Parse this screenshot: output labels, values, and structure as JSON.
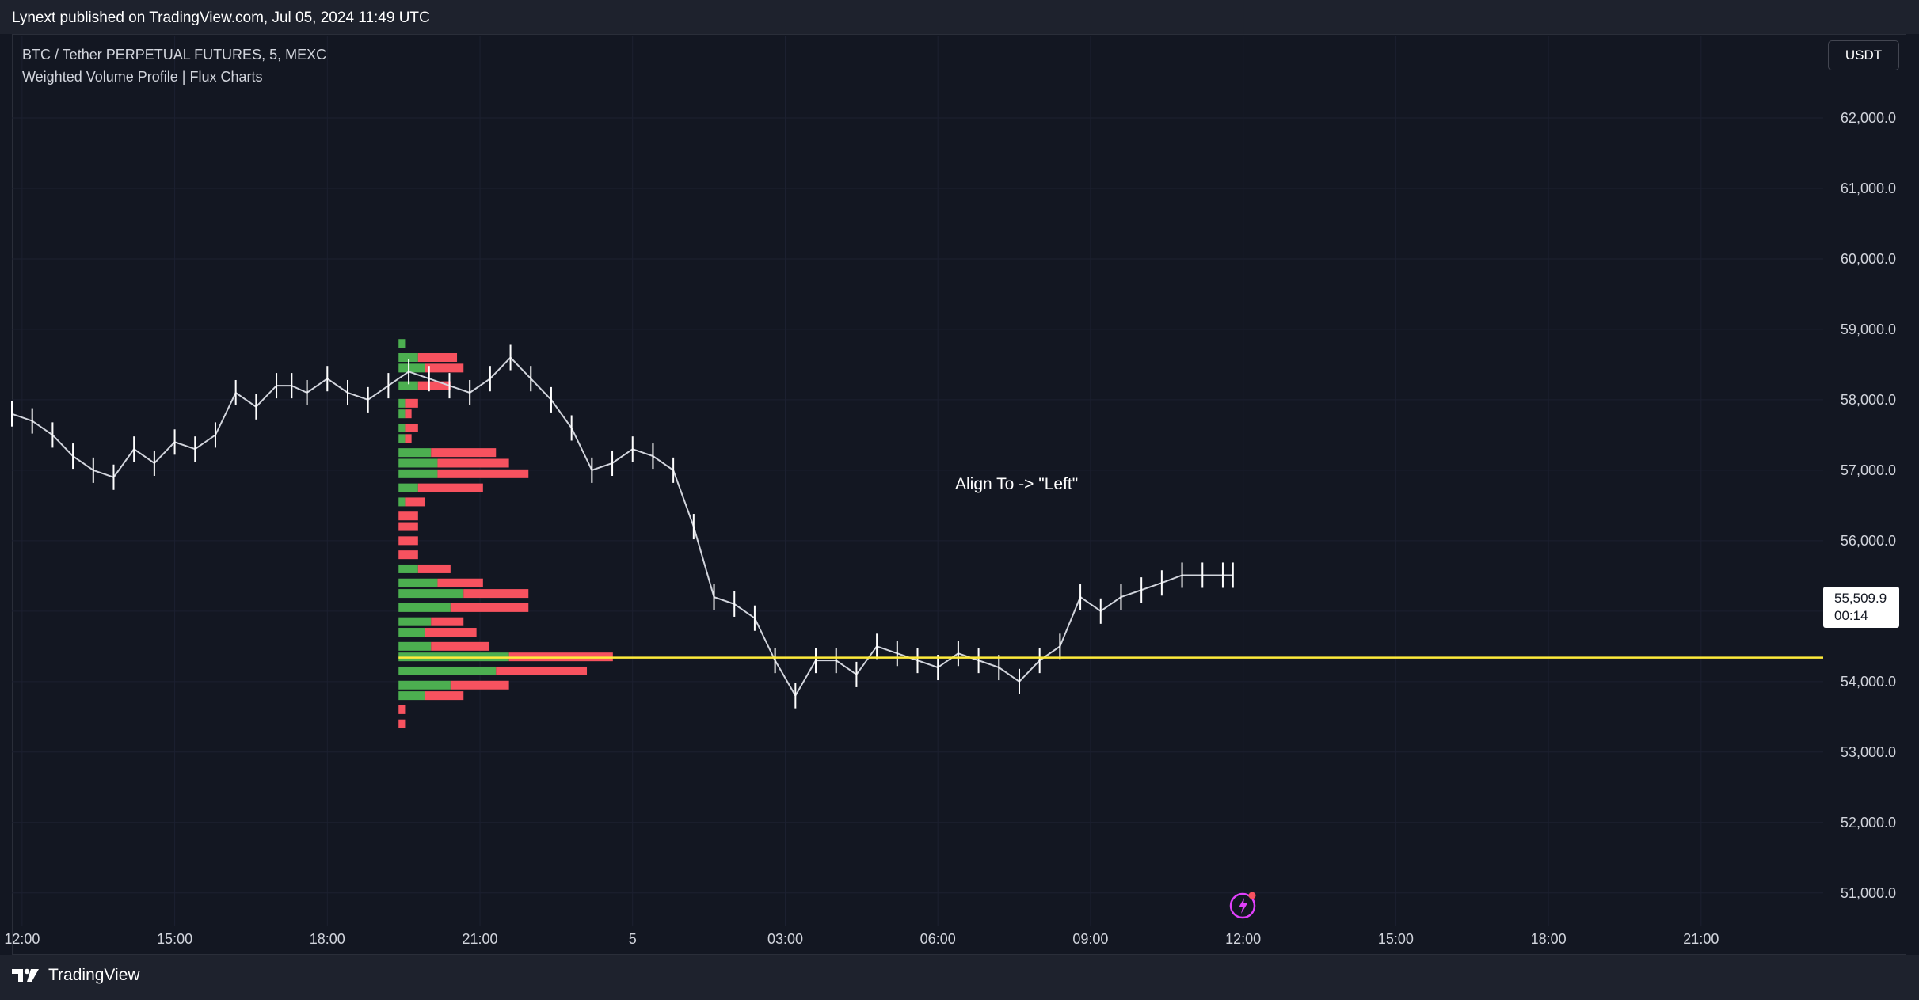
{
  "header": {
    "published_text": "Lynext published on TradingView.com, Jul 05, 2024 11:49 UTC"
  },
  "legend": {
    "symbol": "BTC / Tether PERPETUAL FUTURES, 5, MEXC",
    "indicator": "Weighted Volume Profile | Flux Charts"
  },
  "currency_button": {
    "label": "USDT"
  },
  "price_tag": {
    "price": "55,509.9",
    "countdown": "00:14"
  },
  "annotation": {
    "text": "Align To -> \"Left\""
  },
  "footer": {
    "brand": "TradingView"
  },
  "icons": {
    "lightning": "lightning-icon",
    "logo": "tradingview-logo-icon"
  },
  "colors": {
    "background": "#131722",
    "grid": "#1c2030",
    "price_line": "#d1d4dc",
    "buy_volume": "#4caf50",
    "sell_volume": "#f7525f",
    "poc": "#ffeb3b",
    "lightning": "#e040fb"
  },
  "chart_data": {
    "type": "line",
    "title": "",
    "xlabel": "",
    "ylabel": "",
    "x_ticks": [
      "12:00",
      "15:00",
      "18:00",
      "21:00",
      "5",
      "03:00",
      "06:00",
      "09:00",
      "12:00",
      "15:00",
      "18:00",
      "21:00"
    ],
    "x_tick_hours": [
      12,
      15,
      18,
      21,
      24,
      27,
      30,
      33,
      36,
      39,
      42,
      45
    ],
    "xlim_hours": [
      11.8,
      47.4
    ],
    "y_ticks": [
      "51,000.0",
      "52,000.0",
      "53,000.0",
      "54,000.0",
      "55,000.0",
      "56,000.0",
      "57,000.0",
      "58,000.0",
      "59,000.0",
      "60,000.0",
      "61,000.0",
      "62,000.0"
    ],
    "y_tick_values": [
      51000,
      52000,
      53000,
      54000,
      55000,
      56000,
      57000,
      58000,
      59000,
      60000,
      61000,
      62000
    ],
    "ylim": [
      50750,
      63000
    ],
    "grid": true,
    "series": [
      {
        "x_hours": [
          11.8,
          12.2,
          12.6,
          13.0,
          13.4,
          13.8,
          14.2,
          14.6,
          15.0,
          15.4,
          15.8,
          16.2,
          16.6,
          17.0,
          17.3,
          17.6,
          18.0,
          18.4,
          18.8,
          19.2,
          19.6,
          20.0,
          20.4,
          20.8,
          21.2,
          21.6,
          22.0,
          22.4,
          22.8,
          23.2,
          23.6,
          24.0,
          24.4,
          24.8,
          25.2,
          25.6,
          26.0,
          26.4,
          26.8,
          27.2,
          27.6,
          28.0,
          28.4,
          28.8,
          29.2,
          29.6,
          30.0,
          30.4,
          30.8,
          31.2,
          31.6,
          32.0,
          32.4,
          32.8,
          33.2,
          33.6,
          34.0,
          34.4,
          34.8,
          35.2,
          35.6,
          35.8
        ],
        "close": [
          57800,
          57700,
          57500,
          57200,
          57000,
          56900,
          57300,
          57100,
          57400,
          57300,
          57500,
          58100,
          57900,
          58200,
          58200,
          58100,
          58300,
          58100,
          58000,
          58200,
          58400,
          58300,
          58200,
          58100,
          58300,
          58600,
          58300,
          58000,
          57600,
          57000,
          57100,
          57300,
          57200,
          57000,
          56200,
          55200,
          55100,
          54900,
          54300,
          53800,
          54300,
          54300,
          54100,
          54500,
          54400,
          54300,
          54200,
          54400,
          54300,
          54200,
          54000,
          54300,
          54500,
          55200,
          55000,
          55200,
          55300,
          55400,
          55509.9,
          55509.9,
          55509.9,
          55509.9
        ]
      }
    ],
    "volume_profile": {
      "align": "Left",
      "levels": [
        {
          "price": 58800,
          "buy": 1,
          "sell": 0
        },
        {
          "price": 58600,
          "buy": 3,
          "sell": 6
        },
        {
          "price": 58450,
          "buy": 4,
          "sell": 6
        },
        {
          "price": 58200,
          "buy": 3,
          "sell": 5
        },
        {
          "price": 57950,
          "buy": 1,
          "sell": 2
        },
        {
          "price": 57800,
          "buy": 1,
          "sell": 1
        },
        {
          "price": 57600,
          "buy": 1,
          "sell": 2
        },
        {
          "price": 57450,
          "buy": 1,
          "sell": 1
        },
        {
          "price": 57250,
          "buy": 5,
          "sell": 10
        },
        {
          "price": 57100,
          "buy": 6,
          "sell": 11
        },
        {
          "price": 56950,
          "buy": 6,
          "sell": 14
        },
        {
          "price": 56750,
          "buy": 3,
          "sell": 10
        },
        {
          "price": 56550,
          "buy": 1,
          "sell": 3
        },
        {
          "price": 56350,
          "buy": 0,
          "sell": 3
        },
        {
          "price": 56200,
          "buy": 0,
          "sell": 3
        },
        {
          "price": 56000,
          "buy": 0,
          "sell": 3
        },
        {
          "price": 55800,
          "buy": 0,
          "sell": 3
        },
        {
          "price": 55600,
          "buy": 3,
          "sell": 5
        },
        {
          "price": 55400,
          "buy": 6,
          "sell": 7
        },
        {
          "price": 55250,
          "buy": 10,
          "sell": 10
        },
        {
          "price": 55050,
          "buy": 8,
          "sell": 12
        },
        {
          "price": 54850,
          "buy": 5,
          "sell": 5
        },
        {
          "price": 54700,
          "buy": 4,
          "sell": 8
        },
        {
          "price": 54500,
          "buy": 5,
          "sell": 9
        },
        {
          "price": 54350,
          "buy": 17,
          "sell": 16
        },
        {
          "price": 54150,
          "buy": 15,
          "sell": 14
        },
        {
          "price": 53950,
          "buy": 8,
          "sell": 9
        },
        {
          "price": 53800,
          "buy": 4,
          "sell": 6
        },
        {
          "price": 53600,
          "buy": 0,
          "sell": 1
        },
        {
          "price": 53400,
          "buy": 0,
          "sell": 1
        }
      ]
    },
    "poc_price": 54340,
    "poc_start_hour": 19.4
  }
}
